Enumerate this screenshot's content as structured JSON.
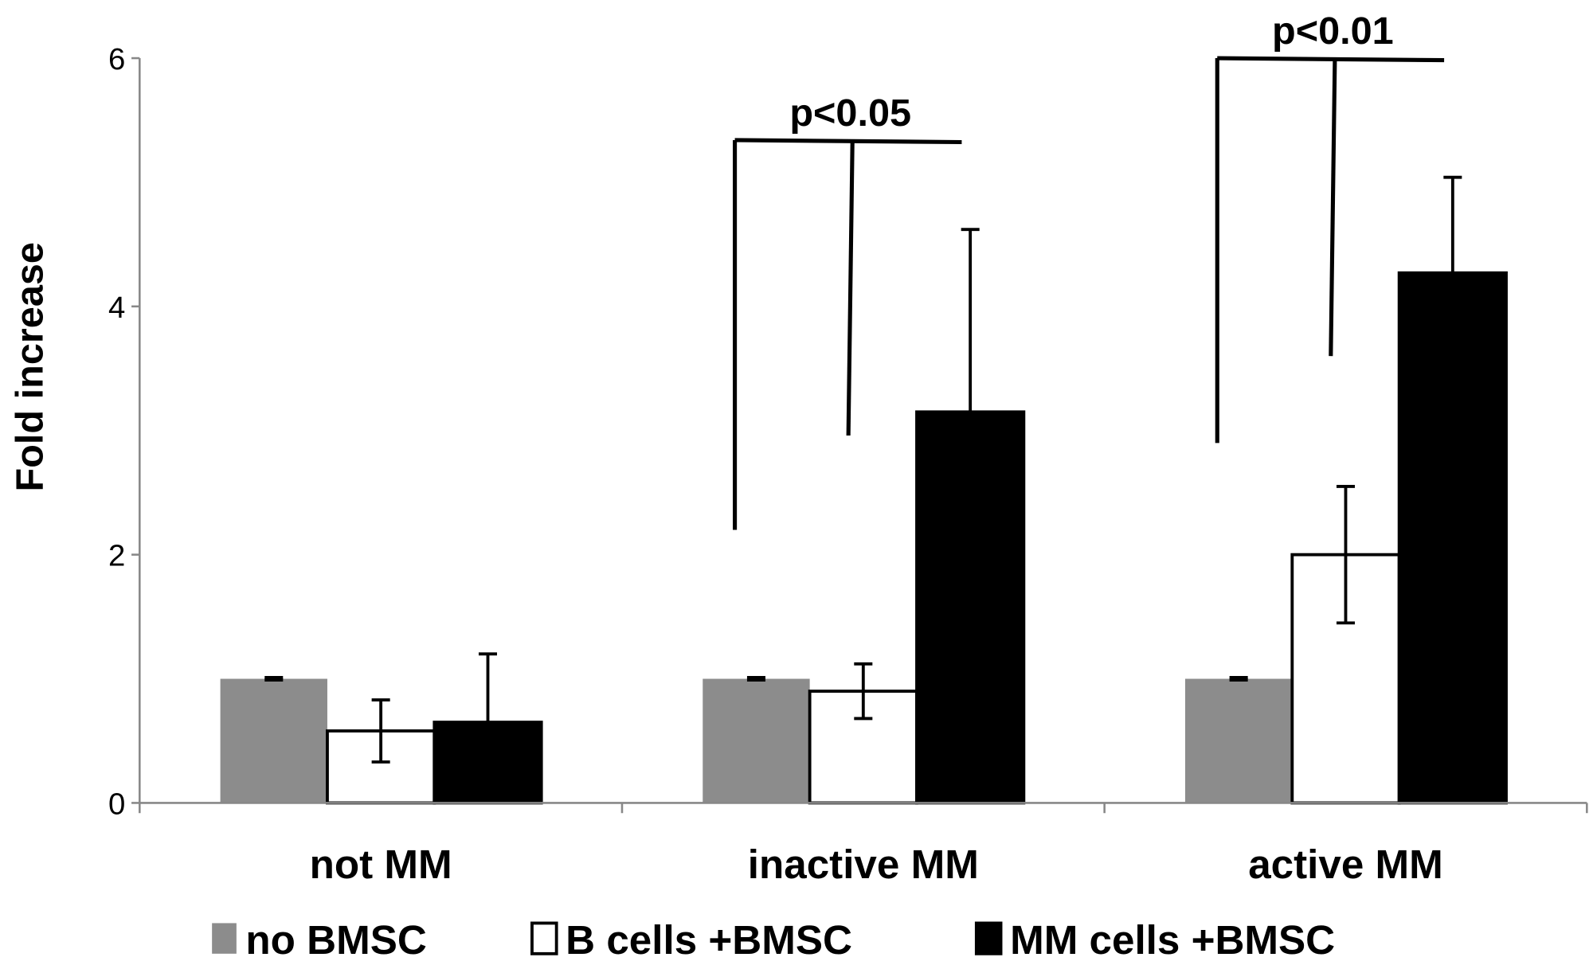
{
  "chart_data": {
    "type": "bar",
    "title": "",
    "xlabel": "",
    "ylabel": "Fold increase",
    "ylim": [
      0,
      6
    ],
    "yticks": [
      0,
      2,
      4,
      6
    ],
    "grid": false,
    "legend_position": "bottom",
    "categories": [
      "not MM",
      "inactive MM",
      "active MM"
    ],
    "series": [
      {
        "name": "no BMSC",
        "color": "#8c8c8c",
        "values": [
          1.0,
          1.0,
          1.0
        ],
        "errors": [
          0.01,
          0.01,
          0.01
        ]
      },
      {
        "name": "B cells +BMSC",
        "color": "#ffffff",
        "values": [
          0.58,
          0.9,
          2.0
        ],
        "errors": [
          0.25,
          0.22,
          0.55
        ]
      },
      {
        "name": "MM cells +BMSC",
        "color": "#000000",
        "values": [
          0.65,
          3.15,
          4.27
        ],
        "errors": [
          0.55,
          1.47,
          0.77
        ]
      }
    ],
    "annotations": [
      {
        "text": "p<0.05",
        "category": "inactive MM",
        "bracket_y": 5.34,
        "legs": [
          2.2,
          2.96
        ]
      },
      {
        "text": "p<0.01",
        "category": "active MM",
        "bracket_y": 6.0,
        "legs": [
          2.9,
          3.6
        ]
      }
    ]
  }
}
